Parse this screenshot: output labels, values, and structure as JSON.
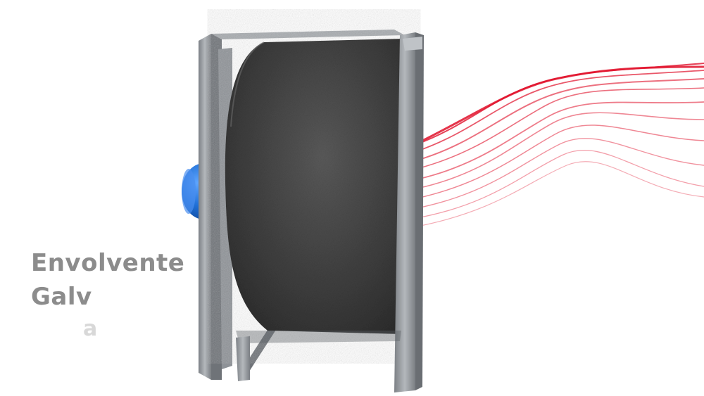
{
  "caption": {
    "line1": "Envolvente",
    "line2": "Galv",
    "fragment": "a"
  },
  "colors": {
    "background": "#ffffff",
    "caption_text": "#8c8c8c",
    "caption_fragment": "#d8d8d8",
    "airflow_lines": "#e0102a",
    "motor": "#1f6fd6",
    "housing": "#4a4a4a",
    "frame": "#9a9ea3"
  },
  "icons": [
    "centrifugal-fan-illustration",
    "airflow-lines",
    "electric-motor"
  ]
}
